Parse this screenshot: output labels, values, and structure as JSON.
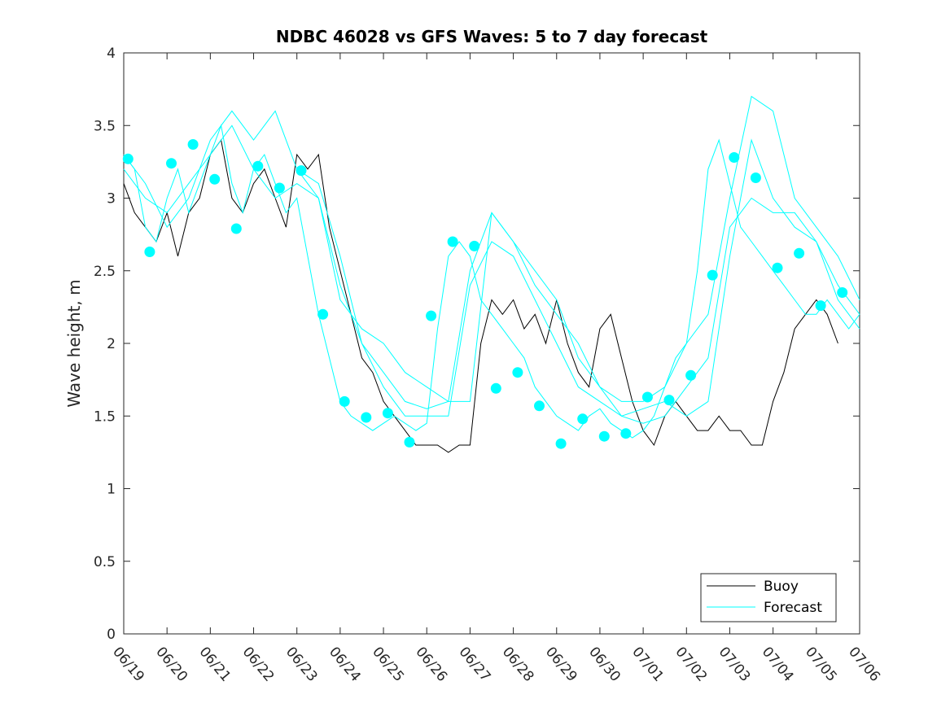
{
  "chart_data": {
    "type": "line",
    "title": "NDBC 46028 vs GFS Waves: 5 to 7 day forecast",
    "xlabel": "",
    "ylabel": "Wave height, m",
    "xlim": [
      0,
      17
    ],
    "ylim": [
      0,
      4
    ],
    "yticks": [
      0,
      0.5,
      1,
      1.5,
      2,
      2.5,
      3,
      3.5,
      4
    ],
    "ytick_labels": [
      "0",
      "0.5",
      "1",
      "1.5",
      "2",
      "2.5",
      "3",
      "3.5",
      "4"
    ],
    "xtick_labels": [
      "06/19",
      "06/20",
      "06/21",
      "06/22",
      "06/23",
      "06/24",
      "06/25",
      "06/26",
      "06/27",
      "06/28",
      "06/29",
      "06/30",
      "07/01",
      "07/02",
      "07/03",
      "07/04",
      "07/05",
      "07/06"
    ],
    "grid": false,
    "legend": {
      "placement": "bottom-right",
      "entries": [
        {
          "label": "Buoy",
          "color": "#000000"
        },
        {
          "label": "Forecast",
          "color": "#00ffff"
        }
      ]
    },
    "colors": {
      "buoy": "#000000",
      "forecast": "#00ffff",
      "axes": "#262626"
    },
    "series": [
      {
        "name": "Buoy",
        "x": [
          0.0,
          0.25,
          0.5,
          0.75,
          1.0,
          1.25,
          1.5,
          1.75,
          2.0,
          2.25,
          2.5,
          2.75,
          3.0,
          3.25,
          3.5,
          3.75,
          4.0,
          4.25,
          4.5,
          4.75,
          5.0,
          5.25,
          5.5,
          5.75,
          6.0,
          6.25,
          6.5,
          6.75,
          7.0,
          7.25,
          7.5,
          7.75,
          8.0,
          8.25,
          8.5,
          8.75,
          9.0,
          9.25,
          9.5,
          9.75,
          10.0,
          10.25,
          10.5,
          10.75,
          11.0,
          11.25,
          11.5,
          11.75,
          12.0,
          12.25,
          12.5,
          12.75,
          13.0,
          13.25,
          13.5,
          13.75,
          14.0,
          14.25,
          14.5,
          14.75,
          15.0,
          15.25,
          15.5,
          15.75,
          16.0,
          16.25,
          16.5
        ],
        "y": [
          3.1,
          2.9,
          2.8,
          2.7,
          2.9,
          2.6,
          2.9,
          3.0,
          3.3,
          3.4,
          3.0,
          2.9,
          3.1,
          3.2,
          3.0,
          2.8,
          3.3,
          3.2,
          3.3,
          2.8,
          2.5,
          2.2,
          1.9,
          1.8,
          1.6,
          1.5,
          1.4,
          1.3,
          1.3,
          1.3,
          1.25,
          1.3,
          1.3,
          2.0,
          2.3,
          2.2,
          2.3,
          2.1,
          2.2,
          2.0,
          2.3,
          2.0,
          1.8,
          1.7,
          2.1,
          2.2,
          1.9,
          1.6,
          1.4,
          1.3,
          1.5,
          1.6,
          1.5,
          1.4,
          1.4,
          1.5,
          1.4,
          1.4,
          1.3,
          1.3,
          1.6,
          1.8,
          2.1,
          2.2,
          2.3,
          2.2,
          2.0
        ]
      },
      {
        "name": "Forecast",
        "x": [
          0.0,
          0.25,
          0.5,
          0.75,
          1.0,
          1.25,
          1.5,
          1.75,
          2.0,
          2.25,
          2.5,
          2.75,
          3.0,
          3.25,
          3.5,
          3.75,
          4.0,
          4.25,
          4.5,
          4.75,
          5.0,
          5.25,
          5.5,
          5.75,
          6.0,
          6.25,
          6.5,
          6.75,
          7.0,
          7.25,
          7.5,
          7.75,
          8.0,
          8.25,
          8.5,
          8.75,
          9.0,
          9.25,
          9.5,
          9.75,
          10.0,
          10.25,
          10.5,
          10.75,
          11.0,
          11.25,
          11.5,
          11.75,
          12.0,
          12.25,
          12.5,
          12.75,
          13.0,
          13.25,
          13.5,
          13.75,
          14.0,
          14.25,
          14.5,
          14.75,
          15.0,
          15.25,
          15.5,
          15.75,
          16.0,
          16.25,
          16.5,
          16.75,
          17.0
        ],
        "y": [
          3.3,
          3.2,
          2.8,
          2.7,
          3.0,
          3.2,
          2.9,
          3.1,
          3.3,
          3.5,
          3.1,
          2.9,
          3.2,
          3.3,
          3.1,
          2.9,
          3.0,
          2.6,
          2.2,
          1.9,
          1.6,
          1.5,
          1.45,
          1.4,
          1.45,
          1.5,
          1.45,
          1.4,
          1.45,
          2.1,
          2.6,
          2.7,
          2.6,
          2.3,
          2.2,
          2.1,
          2.0,
          1.9,
          1.7,
          1.6,
          1.5,
          1.45,
          1.4,
          1.5,
          1.55,
          1.45,
          1.4,
          1.35,
          1.4,
          1.5,
          1.7,
          1.9,
          2.0,
          2.5,
          3.2,
          3.4,
          3.1,
          2.8,
          2.7,
          2.6,
          2.5,
          2.4,
          2.3,
          2.2,
          2.2,
          2.3,
          2.2,
          2.1,
          2.2
        ]
      },
      {
        "name": "Forecast",
        "x": [
          0.0,
          0.5,
          1.0,
          1.5,
          2.0,
          2.5,
          3.0,
          3.5,
          4.0,
          4.5,
          5.0,
          5.5,
          6.0,
          6.5,
          7.0,
          7.5,
          8.0,
          8.5,
          9.0,
          9.5,
          10.0,
          10.5,
          11.0,
          11.5,
          12.0,
          12.5,
          13.0,
          13.5,
          14.0,
          14.5,
          15.0,
          15.5,
          16.0,
          16.5,
          17.0
        ],
        "y": [
          3.2,
          3.0,
          2.9,
          3.1,
          3.3,
          3.5,
          3.2,
          3.0,
          3.1,
          3.0,
          2.4,
          2.0,
          1.7,
          1.5,
          1.5,
          1.5,
          2.4,
          2.7,
          2.6,
          2.3,
          2.0,
          1.7,
          1.6,
          1.5,
          1.55,
          1.6,
          1.5,
          1.6,
          2.6,
          3.4,
          3.0,
          2.8,
          2.7,
          2.3,
          2.1
        ]
      },
      {
        "name": "Forecast",
        "x": [
          0.0,
          0.5,
          1.0,
          1.5,
          2.0,
          2.5,
          3.0,
          3.5,
          4.0,
          4.5,
          5.0,
          5.5,
          6.0,
          6.5,
          7.0,
          7.5,
          8.0,
          8.5,
          9.0,
          9.5,
          10.0,
          10.5,
          11.0,
          11.5,
          12.0,
          12.5,
          13.0,
          13.5,
          14.0,
          14.5,
          15.0,
          15.5,
          16.0,
          16.5,
          17.0
        ],
        "y": [
          3.3,
          3.1,
          2.8,
          3.0,
          3.4,
          3.6,
          3.4,
          3.6,
          3.2,
          3.1,
          2.6,
          2.0,
          1.8,
          1.6,
          1.55,
          1.6,
          2.5,
          2.9,
          2.7,
          2.5,
          2.3,
          1.9,
          1.7,
          1.6,
          1.6,
          1.7,
          2.0,
          2.2,
          3.0,
          3.7,
          3.6,
          3.0,
          2.8,
          2.6,
          2.3
        ]
      },
      {
        "name": "Forecast",
        "x": [
          4.0,
          4.5,
          5.0,
          5.5,
          6.0,
          6.5,
          7.0,
          7.5,
          8.0,
          8.5,
          9.0,
          9.5,
          10.0,
          10.5,
          11.0,
          11.5,
          12.0,
          12.5,
          13.0,
          13.5,
          14.0,
          14.5,
          15.0,
          15.5,
          16.0,
          16.5,
          17.0
        ],
        "y": [
          3.2,
          3.0,
          2.3,
          2.1,
          2.0,
          1.8,
          1.7,
          1.6,
          1.6,
          2.9,
          2.7,
          2.4,
          2.2,
          2.0,
          1.7,
          1.5,
          1.45,
          1.5,
          1.7,
          1.9,
          2.8,
          3.0,
          2.9,
          2.9,
          2.7,
          2.4,
          2.2
        ]
      }
    ],
    "markers": {
      "name": "Forecast",
      "x": [
        0.1,
        0.6,
        1.1,
        1.6,
        2.1,
        2.6,
        3.1,
        3.6,
        4.1,
        4.6,
        5.1,
        5.6,
        6.1,
        6.6,
        7.1,
        7.6,
        8.1,
        8.6,
        9.1,
        9.6,
        10.1,
        10.6,
        11.1,
        11.6,
        12.1,
        12.6,
        13.1,
        13.6,
        14.1,
        14.6,
        15.1,
        15.6,
        16.1,
        16.6
      ],
      "y": [
        3.27,
        2.63,
        3.24,
        3.37,
        3.13,
        2.79,
        3.22,
        3.07,
        3.19,
        2.2,
        1.6,
        1.49,
        1.52,
        1.32,
        2.19,
        2.7,
        2.67,
        1.69,
        1.8,
        1.57,
        1.31,
        1.48,
        1.36,
        1.38,
        1.63,
        1.61,
        1.78,
        2.47,
        3.28,
        3.14,
        2.52,
        2.62,
        2.26,
        2.35
      ]
    }
  }
}
